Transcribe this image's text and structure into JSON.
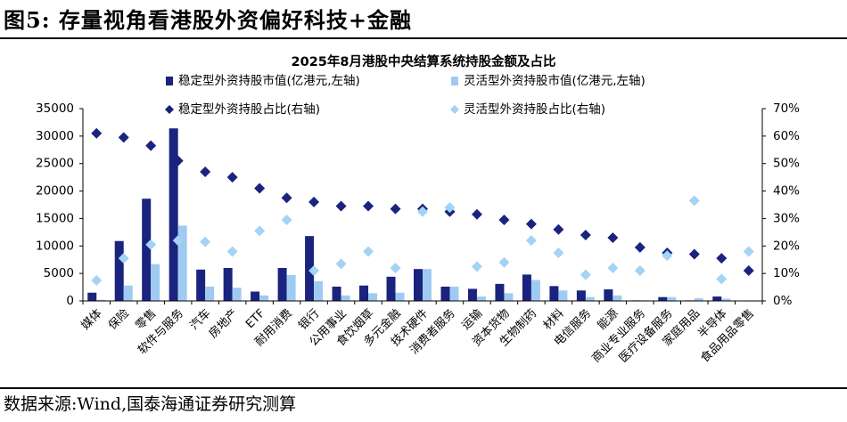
{
  "figure_label": "图5:",
  "figure_title": "存量视角看港股外资偏好科技+金融",
  "source": "数据来源:Wind,国泰海通证券研究测算",
  "colors": {
    "stable_bar": "#1a237e",
    "flexible_bar": "#9fcbf2",
    "stable_marker": "#1a237e",
    "flexible_marker": "#a3d3f5",
    "axis": "#000000"
  },
  "chart_data": {
    "type": "bar+scatter",
    "title": "2025年8月港股中央结算系统持股金额及占比",
    "legend_position": "top",
    "grid": false,
    "y_left": {
      "min": 0,
      "max": 35000,
      "ticks": [
        "0",
        "5000",
        "10000",
        "15000",
        "20000",
        "25000",
        "30000",
        "35000"
      ]
    },
    "y_right": {
      "min": 0,
      "max": 0.7,
      "ticks": [
        "0%",
        "10%",
        "20%",
        "30%",
        "40%",
        "50%",
        "60%",
        "70%"
      ]
    },
    "categories": [
      "媒体",
      "保险",
      "零售",
      "软件与服务",
      "汽车",
      "房地产",
      "ETF",
      "耐用消费",
      "银行",
      "公用事业",
      "食饮烟草",
      "多元金融",
      "技术硬件",
      "消费者服务",
      "运输",
      "资本货物",
      "生物制药",
      "材料",
      "电信服务",
      "能源",
      "商业专业服务",
      "医疗设备服务",
      "家庭用品",
      "半导体",
      "食品用品零售"
    ],
    "series": [
      {
        "name": "稳定型外资持股市值(亿港元,左轴)",
        "axis": "left",
        "kind": "bar",
        "values": [
          1500,
          10900,
          18600,
          31400,
          5700,
          6000,
          1700,
          6000,
          11800,
          2600,
          2800,
          4400,
          5800,
          2600,
          2200,
          3100,
          4800,
          2700,
          1900,
          2100,
          100,
          700,
          100,
          800,
          0
        ]
      },
      {
        "name": "灵活型外资持股市值(亿港元,左轴)",
        "axis": "left",
        "kind": "bar",
        "values": [
          200,
          2800,
          6700,
          13700,
          2600,
          2400,
          1000,
          4700,
          3600,
          1000,
          1400,
          1500,
          5800,
          2600,
          800,
          1400,
          3800,
          1900,
          700,
          1000,
          100,
          700,
          500,
          400,
          100
        ]
      },
      {
        "name": "稳定型外资持股占比(右轴)",
        "axis": "right",
        "kind": "marker",
        "values": [
          0.61,
          0.595,
          0.565,
          0.51,
          0.47,
          0.45,
          0.41,
          0.375,
          0.36,
          0.345,
          0.345,
          0.335,
          0.335,
          0.325,
          0.315,
          0.295,
          0.28,
          0.26,
          0.24,
          0.23,
          0.195,
          0.175,
          0.17,
          0.155,
          0.11
        ]
      },
      {
        "name": "灵活型外资持股占比(右轴)",
        "axis": "right",
        "kind": "marker",
        "values": [
          0.075,
          0.155,
          0.205,
          0.22,
          0.215,
          0.18,
          0.255,
          0.295,
          0.11,
          0.135,
          0.18,
          0.12,
          0.325,
          0.34,
          0.125,
          0.14,
          0.22,
          0.175,
          0.095,
          0.12,
          0.11,
          0.165,
          0.365,
          0.08,
          0.18
        ]
      }
    ]
  }
}
